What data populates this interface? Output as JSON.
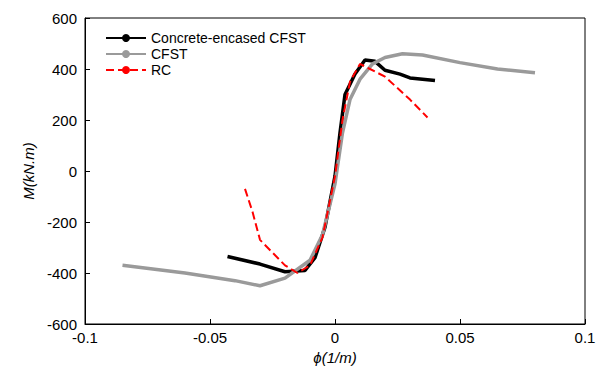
{
  "chart_data": {
    "type": "line",
    "x_label": "ϕ(1/m)",
    "y_label": "M(kN.m)",
    "xlim": [
      -0.1,
      0.1
    ],
    "xticks": [
      -0.1,
      -0.05,
      0,
      0.05,
      0.1
    ],
    "ylim": [
      -600,
      600
    ],
    "yticks": [
      -600,
      -400,
      -200,
      0,
      200,
      400,
      600
    ],
    "grid": false,
    "legend": "top-left",
    "series": [
      {
        "name": "Concrete-encased CFST",
        "color": "#000000",
        "line_style": "solid",
        "x": [
          -0.043,
          -0.03,
          -0.02,
          -0.012,
          -0.008,
          -0.004,
          0,
          0.002,
          0.004,
          0.008,
          0.012,
          0.016,
          0.02,
          0.026,
          0.03,
          0.04
        ],
        "values": [
          -335,
          -365,
          -395,
          -390,
          -340,
          -220,
          -20,
          150,
          300,
          380,
          435,
          430,
          395,
          380,
          365,
          355
        ]
      },
      {
        "name": "CFST",
        "color": "#9a9a9a",
        "line_style": "solid",
        "x": [
          -0.085,
          -0.06,
          -0.04,
          -0.03,
          -0.02,
          -0.01,
          -0.005,
          0,
          0.003,
          0.006,
          0.01,
          0.015,
          0.02,
          0.027,
          0.035,
          0.05,
          0.065,
          0.08
        ],
        "values": [
          -370,
          -400,
          -430,
          -450,
          -420,
          -350,
          -250,
          -50,
          150,
          280,
          360,
          420,
          445,
          460,
          455,
          425,
          400,
          385
        ]
      },
      {
        "name": "RC",
        "color": "#ff0000",
        "line_style": "dashed",
        "x": [
          -0.036,
          -0.033,
          -0.03,
          -0.025,
          -0.02,
          -0.015,
          -0.01,
          -0.005,
          0,
          0.003,
          0.006,
          0.01,
          0.014,
          0.02,
          0.03,
          0.037
        ],
        "values": [
          -70,
          -160,
          -270,
          -320,
          -370,
          -400,
          -370,
          -260,
          -20,
          200,
          350,
          420,
          400,
          370,
          280,
          210
        ]
      }
    ]
  }
}
